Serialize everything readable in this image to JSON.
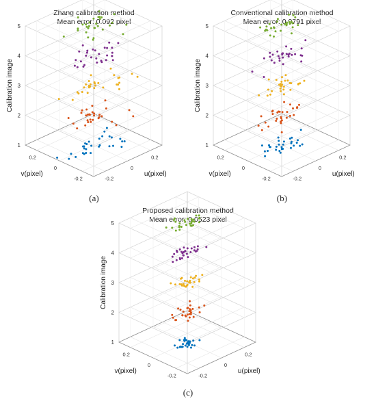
{
  "chart_data": [
    {
      "type": "scatter",
      "panel": "a",
      "caption": "(a)",
      "title": "Zhang calibration method",
      "subtitle": "Mean error: 0.092 pixel",
      "xlabel": "u(pixel)",
      "ylabel": "v(pixel)",
      "zlabel": "Calibration image",
      "x_ticks": [
        "-0.2",
        "0",
        "0.2"
      ],
      "y_ticks": [
        "0.2",
        "0",
        "-0.2"
      ],
      "z_ticks": [
        "1",
        "2",
        "3",
        "4",
        "5"
      ],
      "xlim": [
        -0.3,
        0.3
      ],
      "ylim": [
        -0.3,
        0.3
      ],
      "zlim": [
        1,
        5
      ],
      "spread": 0.25,
      "series": [
        {
          "image": 1,
          "color": "#0072bd",
          "count": 30
        },
        {
          "image": 2,
          "color": "#d95319",
          "count": 30
        },
        {
          "image": 3,
          "color": "#edb120",
          "count": 30
        },
        {
          "image": 4,
          "color": "#7e2f8e",
          "count": 30
        },
        {
          "image": 5,
          "color": "#77ac30",
          "count": 30
        }
      ]
    },
    {
      "type": "scatter",
      "panel": "b",
      "caption": "(b)",
      "title": "Conventional calibration method",
      "subtitle": "Mean error: 0.0791 pixel",
      "xlabel": "u(pixel)",
      "ylabel": "v(pixel)",
      "zlabel": "Calibration image",
      "x_ticks": [
        "-0.2",
        "0",
        "0.2"
      ],
      "y_ticks": [
        "0.2",
        "0",
        "-0.2"
      ],
      "z_ticks": [
        "1",
        "2",
        "3",
        "4",
        "5"
      ],
      "xlim": [
        -0.3,
        0.3
      ],
      "ylim": [
        -0.3,
        0.3
      ],
      "zlim": [
        1,
        5
      ],
      "spread": 0.2,
      "series": [
        {
          "image": 1,
          "color": "#0072bd",
          "count": 30
        },
        {
          "image": 2,
          "color": "#d95319",
          "count": 30
        },
        {
          "image": 3,
          "color": "#edb120",
          "count": 30
        },
        {
          "image": 4,
          "color": "#7e2f8e",
          "count": 30
        },
        {
          "image": 5,
          "color": "#77ac30",
          "count": 30
        }
      ]
    },
    {
      "type": "scatter",
      "panel": "c",
      "caption": "(c)",
      "title": "Proposed calibration method",
      "subtitle": "Mean error: 0.0523 pixel",
      "xlabel": "u(pixel)",
      "ylabel": "v(pixel)",
      "zlabel": "Calibration image",
      "x_ticks": [
        "-0.2",
        "0",
        "0.2"
      ],
      "y_ticks": [
        "0.2",
        "0",
        "-0.2"
      ],
      "z_ticks": [
        "1",
        "2",
        "3",
        "4",
        "5"
      ],
      "xlim": [
        -0.3,
        0.3
      ],
      "ylim": [
        -0.3,
        0.3
      ],
      "zlim": [
        1,
        5
      ],
      "spread": 0.14,
      "series": [
        {
          "image": 1,
          "color": "#0072bd",
          "count": 30
        },
        {
          "image": 2,
          "color": "#d95319",
          "count": 30
        },
        {
          "image": 3,
          "color": "#edb120",
          "count": 30
        },
        {
          "image": 4,
          "color": "#7e2f8e",
          "count": 30
        },
        {
          "image": 5,
          "color": "#77ac30",
          "count": 30
        }
      ]
    }
  ]
}
